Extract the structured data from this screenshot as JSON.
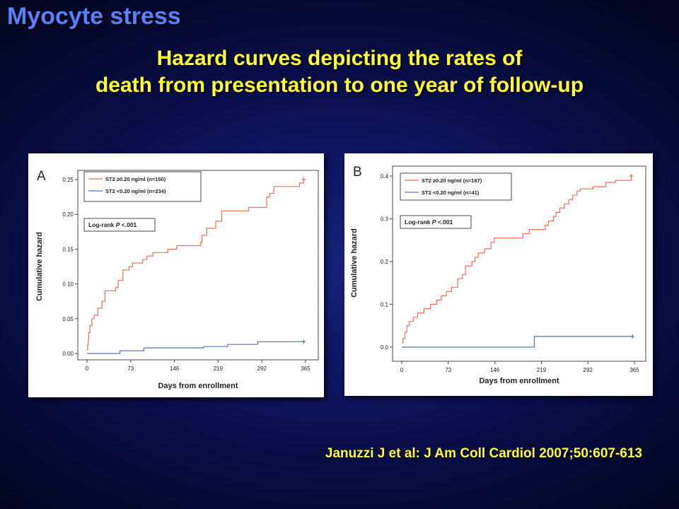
{
  "slide": {
    "title": "Myocyte stress",
    "subtitle_lines": [
      "Hazard curves depicting the rates of",
      "death from presentation to one year of follow-up"
    ],
    "citation": "Januzzi J et al: J Am Coll Cardiol 2007;50:607-613"
  },
  "colors": {
    "high": "#e8705a",
    "low": "#5b76b0",
    "axis": "#333333"
  },
  "chart_data": [
    {
      "type": "line",
      "panel_label": "A",
      "xlabel": "Days from enrollment",
      "ylabel": "Cumulative hazard",
      "xlim": [
        0,
        365
      ],
      "ylim": [
        0,
        0.25
      ],
      "xticks": [
        "0",
        "73",
        "146",
        "219",
        "292",
        "365"
      ],
      "yticks": [
        "0.00",
        "0.05",
        "0.10",
        "0.15",
        "0.20",
        "0.25"
      ],
      "annotation": "Log-rank P <.001",
      "legend_position": "top-left",
      "series": [
        {
          "name": "ST2 ≥0.20 ng/ml (n=150)",
          "color_key": "high",
          "step": true,
          "x": [
            0,
            1,
            2,
            3,
            5,
            8,
            12,
            18,
            25,
            30,
            48,
            52,
            60,
            70,
            76,
            93,
            100,
            110,
            135,
            150,
            190,
            192,
            200,
            215,
            225,
            270,
            300,
            305,
            312,
            355,
            362
          ],
          "y": [
            0.005,
            0.012,
            0.02,
            0.03,
            0.04,
            0.05,
            0.055,
            0.065,
            0.075,
            0.09,
            0.095,
            0.105,
            0.12,
            0.125,
            0.13,
            0.135,
            0.14,
            0.145,
            0.15,
            0.155,
            0.16,
            0.17,
            0.18,
            0.19,
            0.205,
            0.21,
            0.225,
            0.23,
            0.24,
            0.245,
            0.25
          ]
        },
        {
          "name": "ST2 <0.20 ng/ml (n=234)",
          "color_key": "low",
          "step": true,
          "x": [
            0,
            55,
            95,
            195,
            235,
            285,
            362
          ],
          "y": [
            0,
            0.004,
            0.008,
            0.01,
            0.013,
            0.017,
            0.017
          ]
        }
      ]
    },
    {
      "type": "line",
      "panel_label": "B",
      "xlabel": "Days from enrollment",
      "ylabel": "Cumulative hazard",
      "xlim": [
        0,
        365
      ],
      "ylim": [
        0,
        0.4
      ],
      "xticks": [
        "0",
        "73",
        "146",
        "219",
        "292",
        "365"
      ],
      "yticks": [
        "0.0",
        "0.1",
        "0.2",
        "0.3",
        "0.4"
      ],
      "annotation": "Log-rank P <.001",
      "legend_position": "top-left",
      "series": [
        {
          "name": "ST2 ≥0.20 ng/ml (n=167)",
          "color_key": "high",
          "step": true,
          "x": [
            0,
            2,
            5,
            8,
            12,
            18,
            25,
            35,
            45,
            55,
            62,
            70,
            78,
            88,
            95,
            100,
            110,
            115,
            120,
            130,
            140,
            145,
            190,
            200,
            225,
            230,
            238,
            242,
            248,
            255,
            262,
            268,
            275,
            280,
            300,
            320,
            335,
            360
          ],
          "y": [
            0.01,
            0.02,
            0.035,
            0.05,
            0.06,
            0.07,
            0.08,
            0.09,
            0.1,
            0.11,
            0.12,
            0.13,
            0.14,
            0.16,
            0.17,
            0.19,
            0.2,
            0.21,
            0.22,
            0.23,
            0.245,
            0.255,
            0.265,
            0.275,
            0.285,
            0.295,
            0.305,
            0.315,
            0.325,
            0.335,
            0.345,
            0.355,
            0.365,
            0.37,
            0.375,
            0.385,
            0.39,
            0.4
          ]
        },
        {
          "name": "ST2 <0.20 ng/ml (n=41)",
          "color_key": "low",
          "step": true,
          "x": [
            0,
            208,
            362
          ],
          "y": [
            0,
            0.025,
            0.025
          ]
        }
      ]
    }
  ]
}
